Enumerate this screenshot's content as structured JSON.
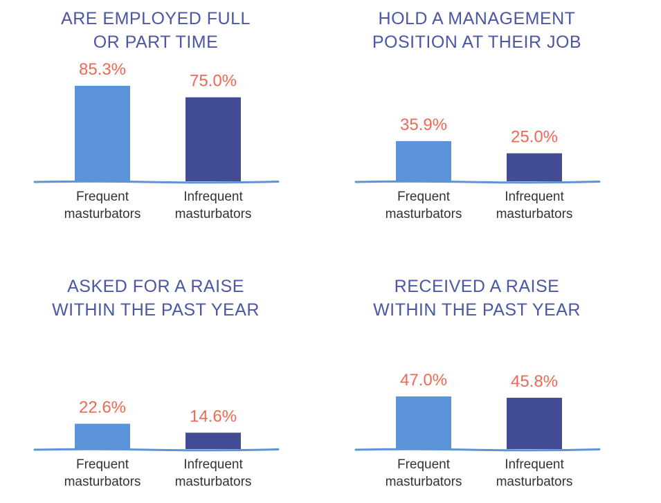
{
  "colors": {
    "title": "#4a56a6",
    "value_label": "#ec6a55",
    "frequent_bar": "#5b94d8",
    "infrequent_bar": "#424c92",
    "baseline": "#5b94d8",
    "category_label": "#333333"
  },
  "chart_data": [
    {
      "type": "bar",
      "title": "ARE EMPLOYED FULL\nOR PART TIME",
      "categories": [
        "Frequent\nmasturbators",
        "Infrequent\nmasturbators"
      ],
      "values": [
        85.3,
        75.0
      ],
      "value_labels": [
        "85.3%",
        "75.0%"
      ],
      "ylim": [
        0,
        100
      ],
      "grid": false,
      "legend": "none"
    },
    {
      "type": "bar",
      "title": "HOLD A MANAGEMENT\nPOSITION AT THEIR JOB",
      "categories": [
        "Frequent\nmasturbators",
        "Infrequent\nmasturbators"
      ],
      "values": [
        35.9,
        25.0
      ],
      "value_labels": [
        "35.9%",
        "25.0%"
      ],
      "ylim": [
        0,
        100
      ],
      "grid": false,
      "legend": "none"
    },
    {
      "type": "bar",
      "title": "ASKED FOR A RAISE\nWITHIN THE PAST YEAR",
      "categories": [
        "Frequent\nmasturbators",
        "Infrequent\nmasturbators"
      ],
      "values": [
        22.6,
        14.6
      ],
      "value_labels": [
        "22.6%",
        "14.6%"
      ],
      "ylim": [
        0,
        100
      ],
      "grid": false,
      "legend": "none"
    },
    {
      "type": "bar",
      "title": "RECEIVED A RAISE\nWITHIN THE PAST YEAR",
      "categories": [
        "Frequent\nmasturbators",
        "Infrequent\nmasturbators"
      ],
      "values": [
        47.0,
        45.8
      ],
      "value_labels": [
        "47.0%",
        "45.8%"
      ],
      "ylim": [
        0,
        100
      ],
      "grid": false,
      "legend": "none"
    }
  ]
}
